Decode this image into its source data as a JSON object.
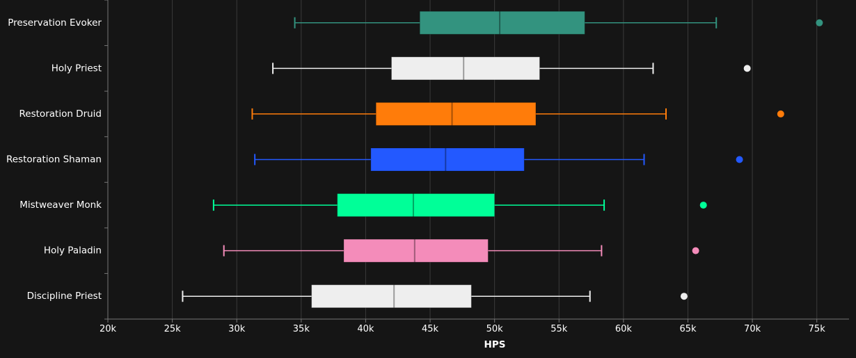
{
  "chart_data": {
    "type": "box",
    "xlabel": "HPS",
    "xlim": [
      20000,
      77500
    ],
    "xticks": [
      20000,
      25000,
      30000,
      35000,
      40000,
      45000,
      50000,
      55000,
      60000,
      65000,
      70000,
      75000
    ],
    "xtick_labels": [
      "20k",
      "25k",
      "30k",
      "35k",
      "40k",
      "45k",
      "50k",
      "55k",
      "60k",
      "65k",
      "70k",
      "75k"
    ],
    "grid": "vertical",
    "series": [
      {
        "name": "Preservation Evoker",
        "color": "#33937F",
        "min": 34500,
        "q1": 44200,
        "median": 50400,
        "q3": 57000,
        "max": 67200,
        "outliers": [
          75200
        ]
      },
      {
        "name": "Holy Priest",
        "color": "#EEEEEE",
        "min": 32800,
        "q1": 42000,
        "median": 47600,
        "q3": 53500,
        "max": 62300,
        "outliers": [
          69600
        ]
      },
      {
        "name": "Restoration Druid",
        "color": "#FF7C0A",
        "min": 31200,
        "q1": 40800,
        "median": 46700,
        "q3": 53200,
        "max": 63300,
        "outliers": [
          72200
        ]
      },
      {
        "name": "Restoration Shaman",
        "color": "#2359FF",
        "min": 31400,
        "q1": 40400,
        "median": 46200,
        "q3": 52300,
        "max": 61600,
        "outliers": [
          69000
        ]
      },
      {
        "name": "Mistweaver Monk",
        "color": "#00FF98",
        "min": 28200,
        "q1": 37800,
        "median": 43700,
        "q3": 50000,
        "max": 58500,
        "outliers": [
          66200
        ]
      },
      {
        "name": "Holy Paladin",
        "color": "#F48CBA",
        "min": 29000,
        "q1": 38300,
        "median": 43800,
        "q3": 49500,
        "max": 58300,
        "outliers": [
          65600
        ]
      },
      {
        "name": "Discipline Priest",
        "color": "#EEEEEE",
        "min": 25800,
        "q1": 35800,
        "median": 42200,
        "q3": 48200,
        "max": 57400,
        "outliers": [
          64700
        ]
      }
    ]
  }
}
